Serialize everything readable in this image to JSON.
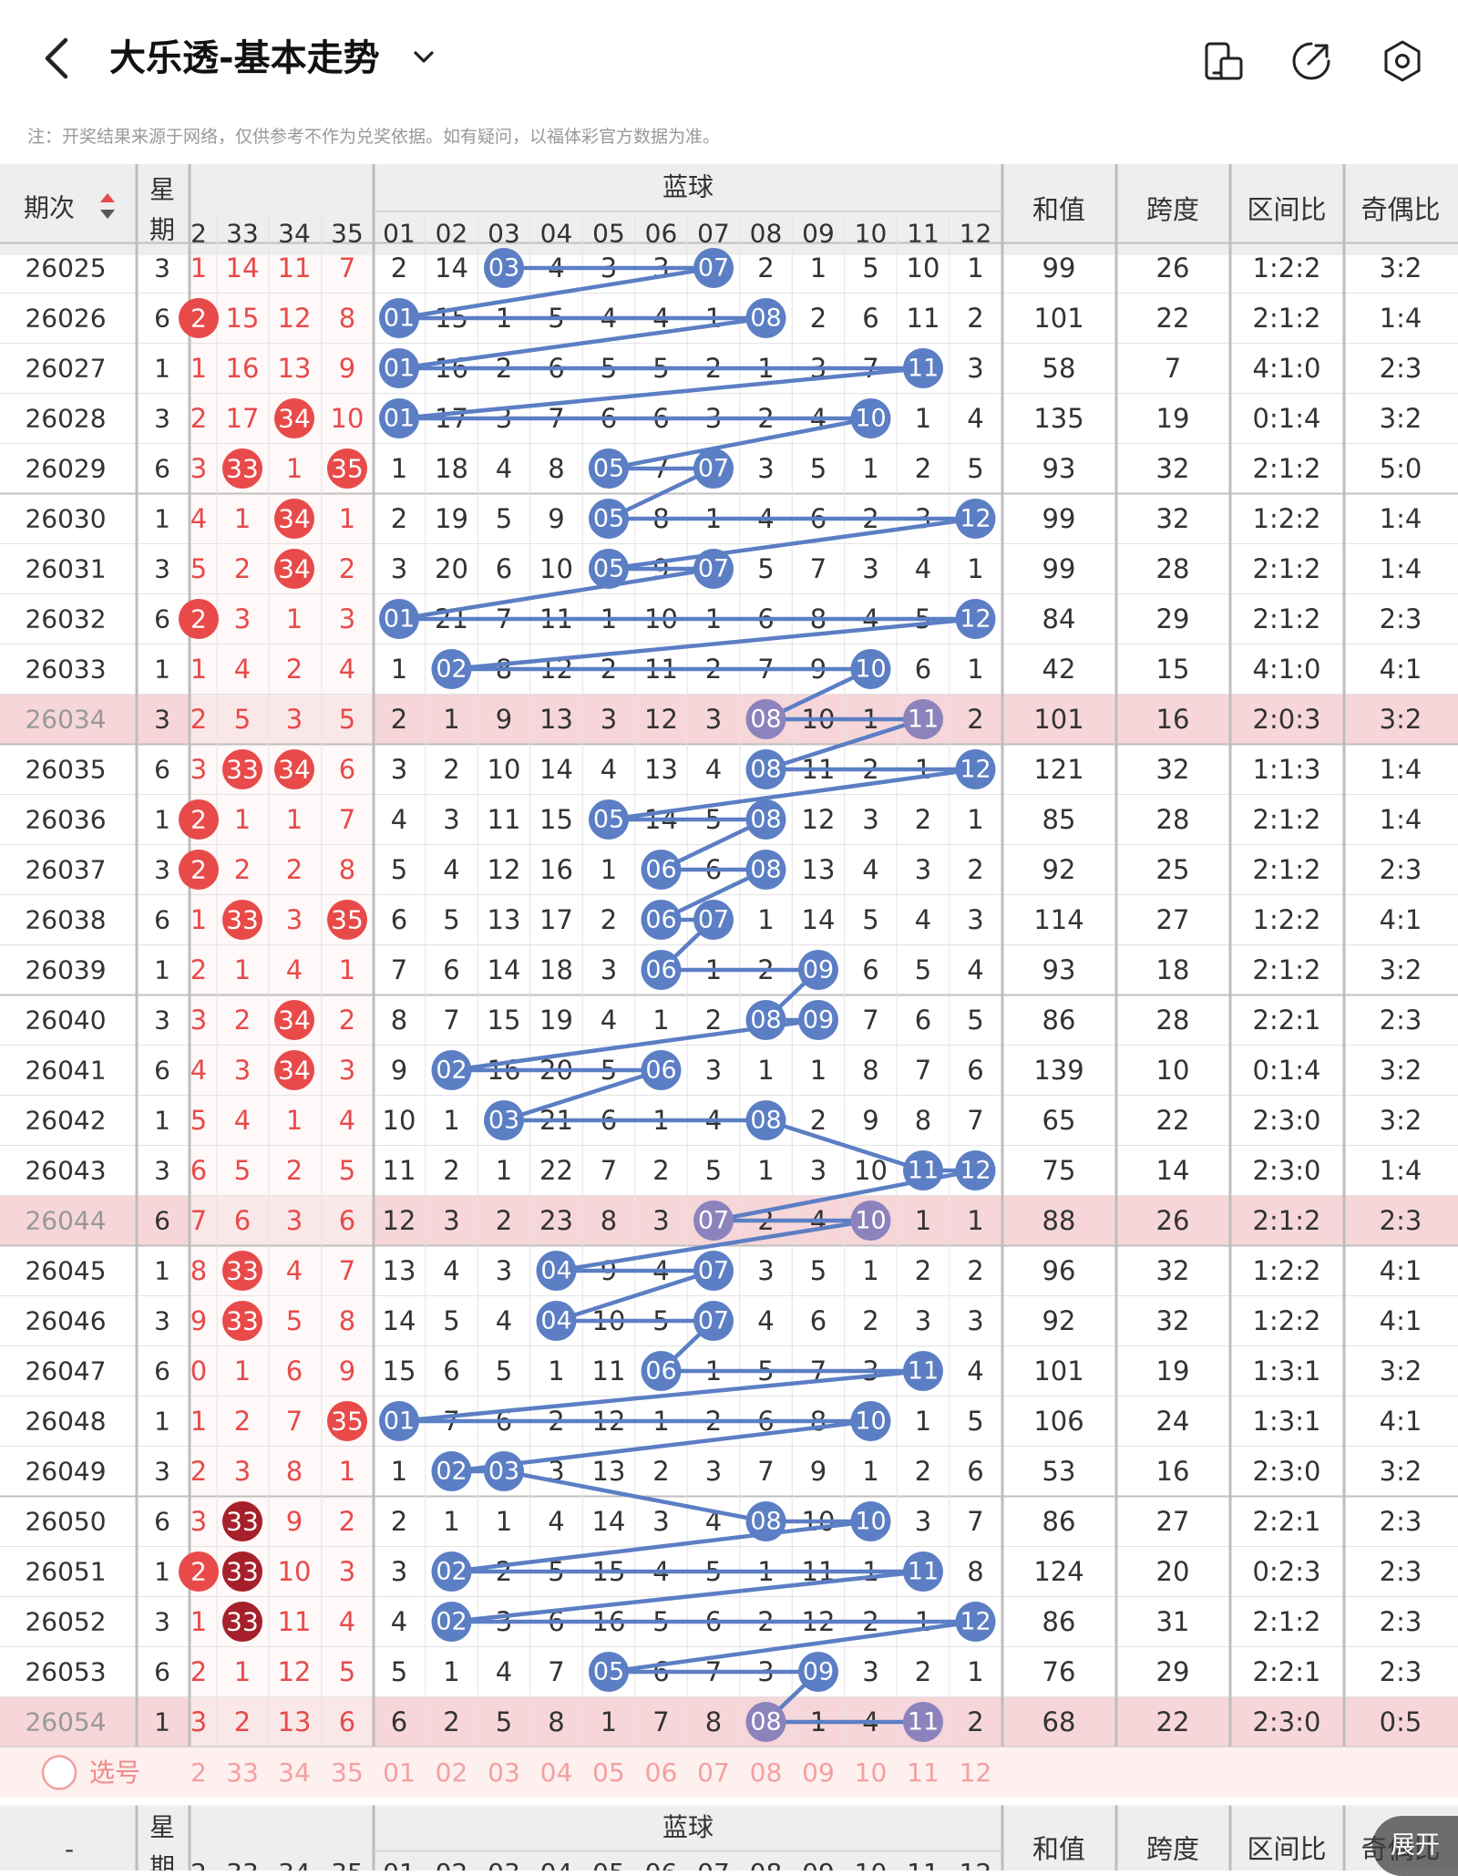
{
  "app": {
    "title": "大乐透-基本走势",
    "note": "注：开奖结果来源于网络，仅供参考不作为兑奖依据。如有疑问，以福体彩官方数据为准。",
    "expand_label": "展开"
  },
  "colors": {
    "red": "#e84a4a",
    "red_dark": "#a5202a",
    "blue": "#5b7ec4",
    "purple": "#8c83bd",
    "highlight_row": "#f6d6d9",
    "header_bg": "#eeeeee",
    "pick_row_bg": "#fdf0ef"
  },
  "header": {
    "issue_label": "期次",
    "week_label": "星期",
    "blue_group_label": "蓝球",
    "front_cols": [
      "2",
      "33",
      "34",
      "35"
    ],
    "blue_cols": [
      "01",
      "02",
      "03",
      "04",
      "05",
      "06",
      "07",
      "08",
      "09",
      "10",
      "11",
      "12"
    ],
    "sum_label": "和值",
    "span_label": "跨度",
    "zone_label": "区间比",
    "odd_label": "奇偶比"
  },
  "rows": [
    {
      "issue": "26025",
      "week": "3",
      "front": [
        "1",
        "14",
        "11",
        "7"
      ],
      "blue": [
        "2",
        "14",
        "03",
        "4",
        "3",
        "3",
        "07",
        "2",
        "1",
        "5",
        "10",
        "1"
      ],
      "sum": "99",
      "span": "26",
      "zone": "1:2:2",
      "odd": "3:2"
    },
    {
      "issue": "26026",
      "week": "6",
      "front": [
        "2",
        "15",
        "12",
        "8"
      ],
      "blue": [
        "01",
        "15",
        "1",
        "5",
        "4",
        "4",
        "1",
        "08",
        "2",
        "6",
        "11",
        "2"
      ],
      "sum": "101",
      "span": "22",
      "zone": "2:1:2",
      "odd": "1:4"
    },
    {
      "issue": "26027",
      "week": "1",
      "front": [
        "1",
        "16",
        "13",
        "9"
      ],
      "blue": [
        "01",
        "16",
        "2",
        "6",
        "5",
        "5",
        "2",
        "1",
        "3",
        "7",
        "11",
        "3"
      ],
      "sum": "58",
      "span": "7",
      "zone": "4:1:0",
      "odd": "2:3"
    },
    {
      "issue": "26028",
      "week": "3",
      "front": [
        "2",
        "17",
        "34",
        "10"
      ],
      "blue": [
        "01",
        "17",
        "3",
        "7",
        "6",
        "6",
        "3",
        "2",
        "4",
        "10",
        "1",
        "4"
      ],
      "sum": "135",
      "span": "19",
      "zone": "0:1:4",
      "odd": "3:2"
    },
    {
      "issue": "26029",
      "week": "6",
      "front": [
        "3",
        "33",
        "1",
        "35"
      ],
      "blue": [
        "1",
        "18",
        "4",
        "8",
        "05",
        "7",
        "07",
        "3",
        "5",
        "1",
        "2",
        "5"
      ],
      "sum": "93",
      "span": "32",
      "zone": "2:1:2",
      "odd": "5:0"
    },
    {
      "issue": "26030",
      "week": "1",
      "front": [
        "4",
        "1",
        "34",
        "1"
      ],
      "blue": [
        "2",
        "19",
        "5",
        "9",
        "05",
        "8",
        "1",
        "4",
        "6",
        "2",
        "3",
        "12"
      ],
      "sum": "99",
      "span": "32",
      "zone": "1:2:2",
      "odd": "1:4"
    },
    {
      "issue": "26031",
      "week": "3",
      "front": [
        "5",
        "2",
        "34",
        "2"
      ],
      "blue": [
        "3",
        "20",
        "6",
        "10",
        "05",
        "9",
        "07",
        "5",
        "7",
        "3",
        "4",
        "1"
      ],
      "sum": "99",
      "span": "28",
      "zone": "2:1:2",
      "odd": "1:4"
    },
    {
      "issue": "26032",
      "week": "6",
      "front": [
        "2",
        "3",
        "1",
        "3"
      ],
      "blue": [
        "01",
        "21",
        "7",
        "11",
        "1",
        "10",
        "1",
        "6",
        "8",
        "4",
        "5",
        "12"
      ],
      "sum": "84",
      "span": "29",
      "zone": "2:1:2",
      "odd": "2:3"
    },
    {
      "issue": "26033",
      "week": "1",
      "front": [
        "1",
        "4",
        "2",
        "4"
      ],
      "blue": [
        "1",
        "02",
        "8",
        "12",
        "2",
        "11",
        "2",
        "7",
        "9",
        "10",
        "6",
        "1"
      ],
      "sum": "42",
      "span": "15",
      "zone": "4:1:0",
      "odd": "4:1"
    },
    {
      "issue": "26034",
      "week": "3",
      "front": [
        "2",
        "5",
        "3",
        "5"
      ],
      "blue": [
        "2",
        "1",
        "9",
        "13",
        "3",
        "12",
        "3",
        "08",
        "10",
        "1",
        "11",
        "2"
      ],
      "sum": "101",
      "span": "16",
      "zone": "2:0:3",
      "odd": "3:2",
      "hl": true
    },
    {
      "issue": "26035",
      "week": "6",
      "front": [
        "3",
        "33",
        "34",
        "6"
      ],
      "blue": [
        "3",
        "2",
        "10",
        "14",
        "4",
        "13",
        "4",
        "08",
        "11",
        "2",
        "1",
        "12"
      ],
      "sum": "121",
      "span": "32",
      "zone": "1:1:3",
      "odd": "1:4"
    },
    {
      "issue": "26036",
      "week": "1",
      "front": [
        "2",
        "1",
        "1",
        "7"
      ],
      "blue": [
        "4",
        "3",
        "11",
        "15",
        "05",
        "14",
        "5",
        "08",
        "12",
        "3",
        "2",
        "1"
      ],
      "sum": "85",
      "span": "28",
      "zone": "2:1:2",
      "odd": "1:4"
    },
    {
      "issue": "26037",
      "week": "3",
      "front": [
        "2",
        "2",
        "2",
        "8"
      ],
      "blue": [
        "5",
        "4",
        "12",
        "16",
        "1",
        "06",
        "6",
        "08",
        "13",
        "4",
        "3",
        "2"
      ],
      "sum": "92",
      "span": "25",
      "zone": "2:1:2",
      "odd": "2:3"
    },
    {
      "issue": "26038",
      "week": "6",
      "front": [
        "1",
        "33",
        "3",
        "35"
      ],
      "blue": [
        "6",
        "5",
        "13",
        "17",
        "2",
        "06",
        "07",
        "1",
        "14",
        "5",
        "4",
        "3"
      ],
      "sum": "114",
      "span": "27",
      "zone": "1:2:2",
      "odd": "4:1"
    },
    {
      "issue": "26039",
      "week": "1",
      "front": [
        "2",
        "1",
        "4",
        "1"
      ],
      "blue": [
        "7",
        "6",
        "14",
        "18",
        "3",
        "06",
        "1",
        "2",
        "09",
        "6",
        "5",
        "4"
      ],
      "sum": "93",
      "span": "18",
      "zone": "2:1:2",
      "odd": "3:2"
    },
    {
      "issue": "26040",
      "week": "3",
      "front": [
        "3",
        "2",
        "34",
        "2"
      ],
      "blue": [
        "8",
        "7",
        "15",
        "19",
        "4",
        "1",
        "2",
        "08",
        "09",
        "7",
        "6",
        "5"
      ],
      "sum": "86",
      "span": "28",
      "zone": "2:2:1",
      "odd": "2:3"
    },
    {
      "issue": "26041",
      "week": "6",
      "front": [
        "4",
        "3",
        "34",
        "3"
      ],
      "blue": [
        "9",
        "02",
        "16",
        "20",
        "5",
        "06",
        "3",
        "1",
        "1",
        "8",
        "7",
        "6"
      ],
      "sum": "139",
      "span": "10",
      "zone": "0:1:4",
      "odd": "3:2"
    },
    {
      "issue": "26042",
      "week": "1",
      "front": [
        "5",
        "4",
        "1",
        "4"
      ],
      "blue": [
        "10",
        "1",
        "03",
        "21",
        "6",
        "1",
        "4",
        "08",
        "2",
        "9",
        "8",
        "7"
      ],
      "sum": "65",
      "span": "22",
      "zone": "2:3:0",
      "odd": "3:2"
    },
    {
      "issue": "26043",
      "week": "3",
      "front": [
        "6",
        "5",
        "2",
        "5"
      ],
      "blue": [
        "11",
        "2",
        "1",
        "22",
        "7",
        "2",
        "5",
        "1",
        "3",
        "10",
        "11",
        "12"
      ],
      "sum": "75",
      "span": "14",
      "zone": "2:3:0",
      "odd": "1:4"
    },
    {
      "issue": "26044",
      "week": "6",
      "front": [
        "7",
        "6",
        "3",
        "6"
      ],
      "blue": [
        "12",
        "3",
        "2",
        "23",
        "8",
        "3",
        "07",
        "2",
        "4",
        "10",
        "1",
        "1"
      ],
      "sum": "88",
      "span": "26",
      "zone": "2:1:2",
      "odd": "2:3",
      "hl": true
    },
    {
      "issue": "26045",
      "week": "1",
      "front": [
        "8",
        "33",
        "4",
        "7"
      ],
      "blue": [
        "13",
        "4",
        "3",
        "04",
        "9",
        "4",
        "07",
        "3",
        "5",
        "1",
        "2",
        "2"
      ],
      "sum": "96",
      "span": "32",
      "zone": "1:2:2",
      "odd": "4:1"
    },
    {
      "issue": "26046",
      "week": "3",
      "front": [
        "9",
        "33",
        "5",
        "8"
      ],
      "blue": [
        "14",
        "5",
        "4",
        "04",
        "10",
        "5",
        "07",
        "4",
        "6",
        "2",
        "3",
        "3"
      ],
      "sum": "92",
      "span": "32",
      "zone": "1:2:2",
      "odd": "4:1"
    },
    {
      "issue": "26047",
      "week": "6",
      "front": [
        "0",
        "1",
        "6",
        "9"
      ],
      "blue": [
        "15",
        "6",
        "5",
        "1",
        "11",
        "06",
        "1",
        "5",
        "7",
        "3",
        "11",
        "4"
      ],
      "sum": "101",
      "span": "19",
      "zone": "1:3:1",
      "odd": "3:2"
    },
    {
      "issue": "26048",
      "week": "1",
      "front": [
        "1",
        "2",
        "7",
        "35"
      ],
      "blue": [
        "01",
        "7",
        "6",
        "2",
        "12",
        "1",
        "2",
        "6",
        "8",
        "10",
        "1",
        "5"
      ],
      "sum": "106",
      "span": "24",
      "zone": "1:3:1",
      "odd": "4:1"
    },
    {
      "issue": "26049",
      "week": "3",
      "front": [
        "2",
        "3",
        "8",
        "1"
      ],
      "blue": [
        "1",
        "02",
        "03",
        "3",
        "13",
        "2",
        "3",
        "7",
        "9",
        "1",
        "2",
        "6"
      ],
      "sum": "53",
      "span": "16",
      "zone": "2:3:0",
      "odd": "3:2"
    },
    {
      "issue": "26050",
      "week": "6",
      "front": [
        "3",
        "33",
        "9",
        "2"
      ],
      "blue": [
        "2",
        "1",
        "1",
        "4",
        "14",
        "3",
        "4",
        "08",
        "10",
        "10",
        "3",
        "7"
      ],
      "sum": "86",
      "span": "27",
      "zone": "2:2:1",
      "odd": "2:3"
    },
    {
      "issue": "26051",
      "week": "1",
      "front": [
        "2",
        "33",
        "10",
        "3"
      ],
      "blue": [
        "3",
        "02",
        "2",
        "5",
        "15",
        "4",
        "5",
        "1",
        "11",
        "1",
        "11",
        "8"
      ],
      "sum": "124",
      "span": "20",
      "zone": "0:2:3",
      "odd": "2:3"
    },
    {
      "issue": "26052",
      "week": "3",
      "front": [
        "1",
        "33",
        "11",
        "4"
      ],
      "blue": [
        "4",
        "02",
        "3",
        "6",
        "16",
        "5",
        "6",
        "2",
        "12",
        "2",
        "1",
        "12"
      ],
      "sum": "86",
      "span": "31",
      "zone": "2:1:2",
      "odd": "2:3"
    },
    {
      "issue": "26053",
      "week": "6",
      "front": [
        "2",
        "1",
        "12",
        "5"
      ],
      "blue": [
        "5",
        "1",
        "4",
        "7",
        "05",
        "6",
        "7",
        "3",
        "09",
        "3",
        "2",
        "1"
      ],
      "sum": "76",
      "span": "29",
      "zone": "2:2:1",
      "odd": "2:3"
    },
    {
      "issue": "26054",
      "week": "1",
      "front": [
        "3",
        "2",
        "13",
        "6"
      ],
      "blue": [
        "6",
        "2",
        "5",
        "8",
        "1",
        "7",
        "8",
        "08",
        "1",
        "4",
        "11",
        "2"
      ],
      "sum": "68",
      "span": "22",
      "zone": "2:3:0",
      "odd": "0:5",
      "hl": true
    }
  ],
  "front_marks": [
    {
      "row": 1,
      "col": 0,
      "type": "red"
    },
    {
      "row": 3,
      "col": 2,
      "type": "red"
    },
    {
      "row": 4,
      "col": 1,
      "type": "red"
    },
    {
      "row": 4,
      "col": 3,
      "type": "red"
    },
    {
      "row": 5,
      "col": 2,
      "type": "red"
    },
    {
      "row": 6,
      "col": 2,
      "type": "red"
    },
    {
      "row": 7,
      "col": 0,
      "type": "red"
    },
    {
      "row": 10,
      "col": 1,
      "type": "red"
    },
    {
      "row": 10,
      "col": 2,
      "type": "red"
    },
    {
      "row": 11,
      "col": 0,
      "type": "red"
    },
    {
      "row": 12,
      "col": 0,
      "type": "red"
    },
    {
      "row": 13,
      "col": 1,
      "type": "red"
    },
    {
      "row": 13,
      "col": 3,
      "type": "red"
    },
    {
      "row": 15,
      "col": 2,
      "type": "red"
    },
    {
      "row": 16,
      "col": 2,
      "type": "red"
    },
    {
      "row": 20,
      "col": 1,
      "type": "red"
    },
    {
      "row": 21,
      "col": 1,
      "type": "red"
    },
    {
      "row": 23,
      "col": 3,
      "type": "red"
    },
    {
      "row": 25,
      "col": 1,
      "type": "dark"
    },
    {
      "row": 26,
      "col": 0,
      "type": "red"
    },
    {
      "row": 26,
      "col": 1,
      "type": "dark"
    },
    {
      "row": 27,
      "col": 1,
      "type": "dark"
    }
  ],
  "blue_marks": [
    [
      2,
      6
    ],
    [
      0,
      7
    ],
    [
      0,
      10
    ],
    [
      0,
      9
    ],
    [
      4,
      6
    ],
    [
      4,
      11
    ],
    [
      4,
      6
    ],
    [
      0,
      11
    ],
    [
      1,
      9
    ],
    [
      7,
      10
    ],
    [
      7,
      11
    ],
    [
      4,
      7
    ],
    [
      5,
      7
    ],
    [
      5,
      6
    ],
    [
      5,
      8
    ],
    [
      7,
      8
    ],
    [
      1,
      5
    ],
    [
      2,
      7
    ],
    [
      10,
      11
    ],
    [
      6,
      9
    ],
    [
      3,
      6
    ],
    [
      3,
      6
    ],
    [
      5,
      10
    ],
    [
      0,
      9
    ],
    [
      1,
      2
    ],
    [
      7,
      9
    ],
    [
      1,
      10
    ],
    [
      1,
      11
    ],
    [
      4,
      8
    ],
    [
      7,
      10
    ]
  ],
  "footer": {
    "pick_label": "选号",
    "dash": "-"
  }
}
